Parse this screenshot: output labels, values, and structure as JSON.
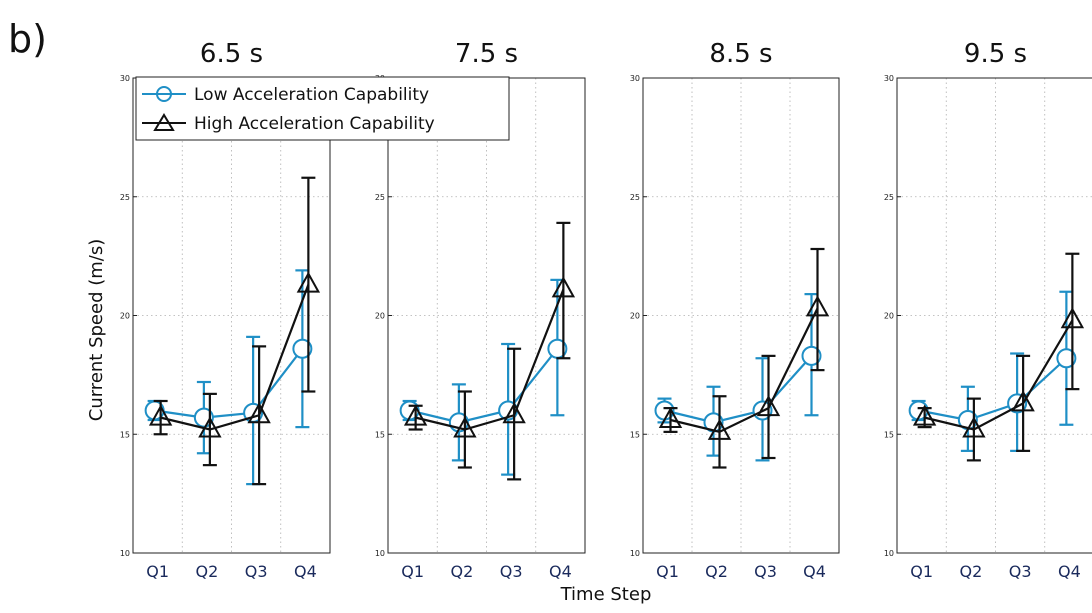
{
  "figure": {
    "panel_letter": "b)",
    "xlabel": "Time Step",
    "ylabel": "Current Speed (m/s)",
    "legend": {
      "low_label": "Low Acceleration Capability",
      "high_label": "High Acceleration Capability"
    },
    "colors": {
      "low": "#1f8fc6",
      "high": "#111111",
      "grid": "#b0b0b0"
    }
  },
  "chart_data": [
    {
      "type": "line",
      "title": "6.5 s",
      "categories": [
        "Q1",
        "Q2",
        "Q3",
        "Q4"
      ],
      "ylim": [
        10,
        30
      ],
      "yticks": [
        10,
        15,
        20,
        25,
        30
      ],
      "grid": true,
      "legend_placement": "top",
      "series": [
        {
          "name": "Low Acceleration Capability",
          "marker": "circle",
          "values": [
            16.0,
            15.7,
            15.9,
            18.6
          ],
          "err_low": [
            15.6,
            14.2,
            12.9,
            15.3
          ],
          "err_high": [
            16.4,
            17.2,
            19.1,
            21.9
          ]
        },
        {
          "name": "High Acceleration Capability",
          "marker": "triangle",
          "values": [
            15.7,
            15.2,
            15.8,
            21.3
          ],
          "err_low": [
            15.0,
            13.7,
            12.9,
            16.8
          ],
          "err_high": [
            16.4,
            16.7,
            18.7,
            25.8
          ]
        }
      ]
    },
    {
      "type": "line",
      "title": "7.5 s",
      "categories": [
        "Q1",
        "Q2",
        "Q3",
        "Q4"
      ],
      "ylim": [
        10,
        30
      ],
      "yticks": [
        10,
        15,
        20,
        25,
        30
      ],
      "grid": true,
      "series": [
        {
          "name": "Low Acceleration Capability",
          "marker": "circle",
          "values": [
            16.0,
            15.5,
            16.0,
            18.6
          ],
          "err_low": [
            15.6,
            13.9,
            13.3,
            15.8
          ],
          "err_high": [
            16.4,
            17.1,
            18.8,
            21.5
          ]
        },
        {
          "name": "High Acceleration Capability",
          "marker": "triangle",
          "values": [
            15.7,
            15.2,
            15.8,
            21.1
          ],
          "err_low": [
            15.2,
            13.6,
            13.1,
            18.2
          ],
          "err_high": [
            16.2,
            16.8,
            18.6,
            23.9
          ]
        }
      ]
    },
    {
      "type": "line",
      "title": "8.5 s",
      "categories": [
        "Q1",
        "Q2",
        "Q3",
        "Q4"
      ],
      "ylim": [
        10,
        30
      ],
      "yticks": [
        10,
        15,
        20,
        25,
        30
      ],
      "grid": true,
      "series": [
        {
          "name": "Low Acceleration Capability",
          "marker": "circle",
          "values": [
            16.0,
            15.5,
            16.0,
            18.3
          ],
          "err_low": [
            15.5,
            14.1,
            13.9,
            15.8
          ],
          "err_high": [
            16.5,
            17.0,
            18.2,
            20.9
          ]
        },
        {
          "name": "High Acceleration Capability",
          "marker": "triangle",
          "values": [
            15.6,
            15.1,
            16.1,
            20.3
          ],
          "err_low": [
            15.1,
            13.6,
            14.0,
            17.7
          ],
          "err_high": [
            16.1,
            16.6,
            18.3,
            22.8
          ]
        }
      ]
    },
    {
      "type": "line",
      "title": "9.5 s",
      "categories": [
        "Q1",
        "Q2",
        "Q3",
        "Q4"
      ],
      "ylim": [
        10,
        30
      ],
      "yticks": [
        10,
        15,
        20,
        25,
        30
      ],
      "grid": true,
      "series": [
        {
          "name": "Low Acceleration Capability",
          "marker": "circle",
          "values": [
            16.0,
            15.6,
            16.3,
            18.2
          ],
          "err_low": [
            15.6,
            14.3,
            14.3,
            15.4
          ],
          "err_high": [
            16.4,
            17.0,
            18.4,
            21.0
          ]
        },
        {
          "name": "High Acceleration Capability",
          "marker": "triangle",
          "values": [
            15.7,
            15.2,
            16.3,
            19.8
          ],
          "err_low": [
            15.3,
            13.9,
            14.3,
            16.9
          ],
          "err_high": [
            16.1,
            16.5,
            18.3,
            22.6
          ]
        }
      ]
    }
  ]
}
